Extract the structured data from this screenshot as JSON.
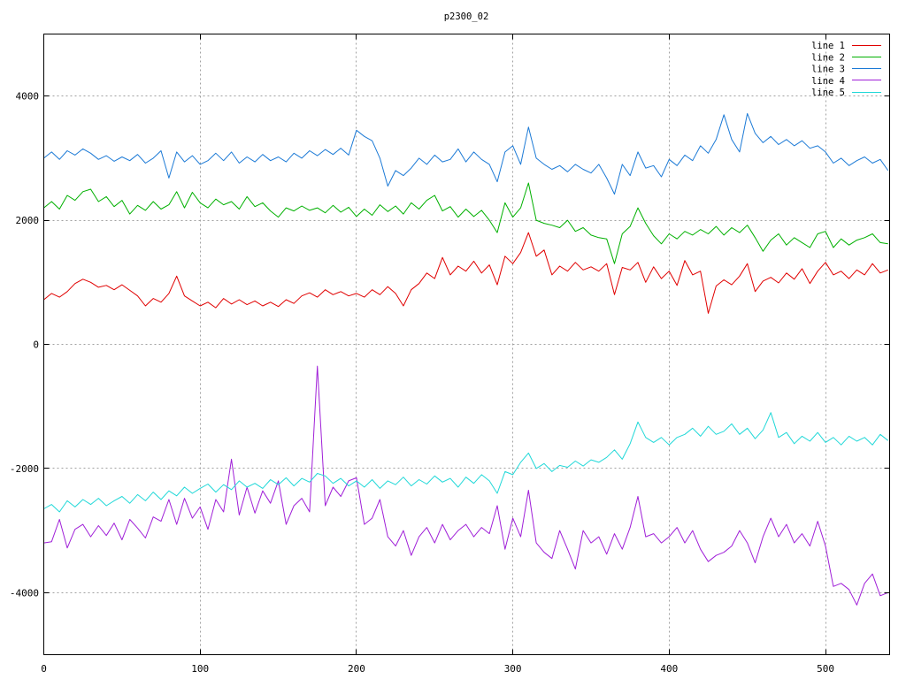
{
  "chart_data": {
    "type": "line",
    "title": "p2300_02",
    "xlim": [
      0,
      541
    ],
    "ylim": [
      -5000,
      5000
    ],
    "xticks": [
      0,
      100,
      200,
      300,
      400,
      500
    ],
    "xtick_labels": [
      "0",
      "100",
      "200",
      "300",
      "400",
      "500"
    ],
    "yticks": [
      -4000,
      -2000,
      0,
      2000,
      4000
    ],
    "ytick_labels": [
      "-4000",
      "-2000",
      "0",
      "2000",
      "4000"
    ],
    "grid": true,
    "legend": "top-right",
    "x": [
      0,
      5,
      10,
      15,
      20,
      25,
      30,
      35,
      40,
      45,
      50,
      55,
      60,
      65,
      70,
      75,
      80,
      85,
      90,
      95,
      100,
      105,
      110,
      115,
      120,
      125,
      130,
      135,
      140,
      145,
      150,
      155,
      160,
      165,
      170,
      175,
      180,
      185,
      190,
      195,
      200,
      205,
      210,
      215,
      220,
      225,
      230,
      235,
      240,
      245,
      250,
      255,
      260,
      265,
      270,
      275,
      280,
      285,
      290,
      295,
      300,
      305,
      310,
      315,
      320,
      325,
      330,
      335,
      340,
      345,
      350,
      355,
      360,
      365,
      370,
      375,
      380,
      385,
      390,
      395,
      400,
      405,
      410,
      415,
      420,
      425,
      430,
      435,
      440,
      445,
      450,
      455,
      460,
      465,
      470,
      475,
      480,
      485,
      490,
      495,
      500,
      505,
      510,
      515,
      520,
      525,
      530,
      535,
      540
    ],
    "series": [
      {
        "name": "line 1",
        "color": "#e00000",
        "values": [
          720,
          820,
          760,
          850,
          980,
          1050,
          1000,
          920,
          950,
          880,
          960,
          870,
          780,
          620,
          740,
          680,
          820,
          1100,
          780,
          700,
          620,
          680,
          590,
          740,
          650,
          720,
          640,
          700,
          620,
          680,
          610,
          720,
          660,
          780,
          830,
          760,
          880,
          800,
          850,
          780,
          820,
          760,
          880,
          800,
          930,
          820,
          620,
          880,
          980,
          1150,
          1060,
          1400,
          1120,
          1260,
          1180,
          1340,
          1150,
          1280,
          960,
          1420,
          1300,
          1480,
          1800,
          1420,
          1520,
          1120,
          1260,
          1180,
          1320,
          1200,
          1250,
          1180,
          1300,
          800,
          1240,
          1200,
          1320,
          1000,
          1250,
          1060,
          1180,
          950,
          1350,
          1120,
          1180,
          500,
          940,
          1040,
          960,
          1100,
          1300,
          850,
          1020,
          1080,
          990,
          1150,
          1050,
          1220,
          980,
          1180,
          1320,
          1120,
          1180,
          1060,
          1200,
          1120,
          1300,
          1150,
          1200
        ]
      },
      {
        "name": "line 2",
        "color": "#00b000",
        "values": [
          2200,
          2300,
          2180,
          2400,
          2320,
          2460,
          2500,
          2300,
          2380,
          2220,
          2320,
          2100,
          2240,
          2160,
          2300,
          2180,
          2250,
          2460,
          2200,
          2450,
          2280,
          2200,
          2340,
          2250,
          2300,
          2180,
          2380,
          2220,
          2280,
          2150,
          2050,
          2200,
          2150,
          2230,
          2160,
          2200,
          2120,
          2240,
          2130,
          2210,
          2060,
          2180,
          2080,
          2250,
          2140,
          2230,
          2100,
          2280,
          2180,
          2320,
          2400,
          2150,
          2220,
          2050,
          2180,
          2060,
          2160,
          2000,
          1800,
          2280,
          2050,
          2200,
          2600,
          2000,
          1950,
          1920,
          1880,
          2000,
          1820,
          1880,
          1760,
          1720,
          1700,
          1300,
          1780,
          1900,
          2200,
          1950,
          1750,
          1620,
          1780,
          1700,
          1820,
          1760,
          1850,
          1780,
          1900,
          1760,
          1880,
          1800,
          1920,
          1720,
          1500,
          1680,
          1780,
          1600,
          1720,
          1640,
          1560,
          1780,
          1820,
          1560,
          1700,
          1600,
          1680,
          1720,
          1780,
          1640,
          1620
        ]
      },
      {
        "name": "line 3",
        "color": "#1c7ad6",
        "values": [
          3000,
          3100,
          2980,
          3120,
          3050,
          3150,
          3080,
          2980,
          3040,
          2950,
          3020,
          2960,
          3060,
          2920,
          3000,
          3120,
          2680,
          3100,
          2940,
          3040,
          2900,
          2960,
          3080,
          2960,
          3100,
          2920,
          3020,
          2940,
          3060,
          2960,
          3020,
          2940,
          3080,
          3000,
          3120,
          3040,
          3140,
          3060,
          3160,
          3050,
          3450,
          3350,
          3280,
          3000,
          2550,
          2800,
          2720,
          2840,
          3000,
          2900,
          3050,
          2940,
          2980,
          3150,
          2940,
          3100,
          2980,
          2900,
          2620,
          3100,
          3200,
          2900,
          3500,
          3000,
          2900,
          2820,
          2880,
          2780,
          2900,
          2820,
          2760,
          2900,
          2680,
          2420,
          2900,
          2720,
          3100,
          2840,
          2880,
          2700,
          2980,
          2880,
          3050,
          2960,
          3200,
          3080,
          3300,
          3700,
          3300,
          3100,
          3720,
          3400,
          3250,
          3350,
          3220,
          3300,
          3200,
          3280,
          3160,
          3200,
          3100,
          2920,
          3000,
          2880,
          2960,
          3020,
          2920,
          2980,
          2800
        ]
      },
      {
        "name": "line 4",
        "color": "#a020d8",
        "values": [
          -3200,
          -3180,
          -2820,
          -3280,
          -2980,
          -2900,
          -3100,
          -2920,
          -3080,
          -2880,
          -3150,
          -2820,
          -2960,
          -3120,
          -2780,
          -2850,
          -2500,
          -2900,
          -2480,
          -2800,
          -2620,
          -2980,
          -2500,
          -2700,
          -1850,
          -2750,
          -2300,
          -2720,
          -2360,
          -2560,
          -2200,
          -2900,
          -2600,
          -2480,
          -2700,
          -350,
          -2600,
          -2300,
          -2450,
          -2200,
          -2150,
          -2900,
          -2800,
          -2500,
          -3100,
          -3250,
          -3000,
          -3400,
          -3100,
          -2950,
          -3200,
          -2900,
          -3150,
          -3000,
          -2900,
          -3100,
          -2950,
          -3050,
          -2600,
          -3300,
          -2800,
          -3100,
          -2350,
          -3200,
          -3350,
          -3450,
          -3000,
          -3300,
          -3620,
          -3000,
          -3200,
          -3100,
          -3380,
          -3050,
          -3300,
          -2950,
          -2450,
          -3100,
          -3050,
          -3200,
          -3100,
          -2950,
          -3200,
          -3000,
          -3300,
          -3500,
          -3400,
          -3350,
          -3250,
          -3000,
          -3200,
          -3520,
          -3100,
          -2800,
          -3100,
          -2900,
          -3200,
          -3050,
          -3250,
          -2850,
          -3250,
          -3900,
          -3850,
          -3950,
          -4200,
          -3850,
          -3700,
          -4050,
          -4000
        ]
      },
      {
        "name": "line 5",
        "color": "#20d8d8",
        "values": [
          -2650,
          -2580,
          -2700,
          -2520,
          -2620,
          -2500,
          -2580,
          -2480,
          -2600,
          -2520,
          -2450,
          -2560,
          -2420,
          -2520,
          -2380,
          -2500,
          -2360,
          -2440,
          -2300,
          -2400,
          -2320,
          -2250,
          -2380,
          -2260,
          -2340,
          -2200,
          -2300,
          -2240,
          -2320,
          -2180,
          -2260,
          -2150,
          -2280,
          -2160,
          -2220,
          -2080,
          -2120,
          -2240,
          -2160,
          -2280,
          -2200,
          -2300,
          -2180,
          -2320,
          -2200,
          -2260,
          -2140,
          -2280,
          -2180,
          -2250,
          -2120,
          -2220,
          -2160,
          -2300,
          -2140,
          -2240,
          -2100,
          -2200,
          -2400,
          -2050,
          -2100,
          -1900,
          -1750,
          -2000,
          -1920,
          -2050,
          -1950,
          -1980,
          -1880,
          -1960,
          -1860,
          -1900,
          -1820,
          -1700,
          -1850,
          -1600,
          -1250,
          -1500,
          -1580,
          -1500,
          -1620,
          -1500,
          -1450,
          -1350,
          -1480,
          -1320,
          -1450,
          -1400,
          -1280,
          -1450,
          -1350,
          -1520,
          -1380,
          -1100,
          -1500,
          -1420,
          -1600,
          -1480,
          -1560,
          -1420,
          -1580,
          -1500,
          -1620,
          -1480,
          -1560,
          -1500,
          -1620,
          -1450,
          -1550
        ]
      }
    ]
  }
}
